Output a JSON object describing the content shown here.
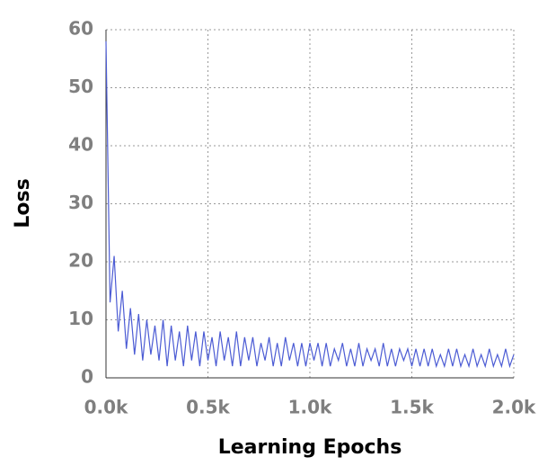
{
  "chart_data": {
    "type": "line",
    "xlabel": "Learning Epochs",
    "ylabel": "Loss",
    "x": [
      0,
      20,
      40,
      60,
      80,
      100,
      120,
      140,
      160,
      180,
      200,
      220,
      240,
      260,
      280,
      300,
      320,
      340,
      360,
      380,
      400,
      420,
      440,
      460,
      480,
      500,
      520,
      540,
      560,
      580,
      600,
      620,
      640,
      660,
      680,
      700,
      720,
      740,
      760,
      780,
      800,
      820,
      840,
      860,
      880,
      900,
      920,
      940,
      960,
      980,
      1000,
      1020,
      1040,
      1060,
      1080,
      1100,
      1120,
      1140,
      1160,
      1180,
      1200,
      1220,
      1240,
      1260,
      1280,
      1300,
      1320,
      1340,
      1360,
      1380,
      1400,
      1420,
      1440,
      1460,
      1480,
      1500,
      1520,
      1540,
      1560,
      1580,
      1600,
      1620,
      1640,
      1660,
      1680,
      1700,
      1720,
      1740,
      1760,
      1780,
      1800,
      1820,
      1840,
      1860,
      1880,
      1900,
      1920,
      1940,
      1960,
      1980,
      2000
    ],
    "series": [
      {
        "name": "Loss",
        "color": "#4b5bd4",
        "values": [
          58,
          13,
          21,
          8,
          15,
          5,
          12,
          4,
          11,
          3,
          10,
          4,
          9,
          3,
          10,
          2,
          9,
          3,
          8,
          2,
          9,
          3,
          8,
          2,
          8,
          3,
          7,
          2,
          8,
          3,
          7,
          2,
          8,
          2,
          7,
          3,
          7,
          2,
          6,
          3,
          7,
          2,
          6,
          2,
          7,
          3,
          6,
          2,
          6,
          2,
          6,
          3,
          6,
          2,
          6,
          2,
          5,
          3,
          6,
          2,
          5,
          2,
          6,
          2,
          5,
          3,
          5,
          2,
          6,
          2,
          5,
          2,
          5,
          3,
          5,
          2,
          5,
          2,
          5,
          2,
          5,
          2,
          4,
          2,
          5,
          2,
          5,
          2,
          4,
          2,
          5,
          2,
          4,
          2,
          5,
          2,
          4,
          2,
          5,
          2,
          4
        ]
      }
    ],
    "xlim": [
      0,
      2000
    ],
    "xticks": [
      {
        "value": 0,
        "label": "0.0k"
      },
      {
        "value": 500,
        "label": "0.5k"
      },
      {
        "value": 1000,
        "label": "1.0k"
      },
      {
        "value": 1500,
        "label": "1.5k"
      },
      {
        "value": 2000,
        "label": "2.0k"
      }
    ],
    "ylim": [
      0,
      60
    ],
    "yticks": [
      0,
      10,
      20,
      30,
      40,
      50,
      60
    ],
    "grid": true
  }
}
